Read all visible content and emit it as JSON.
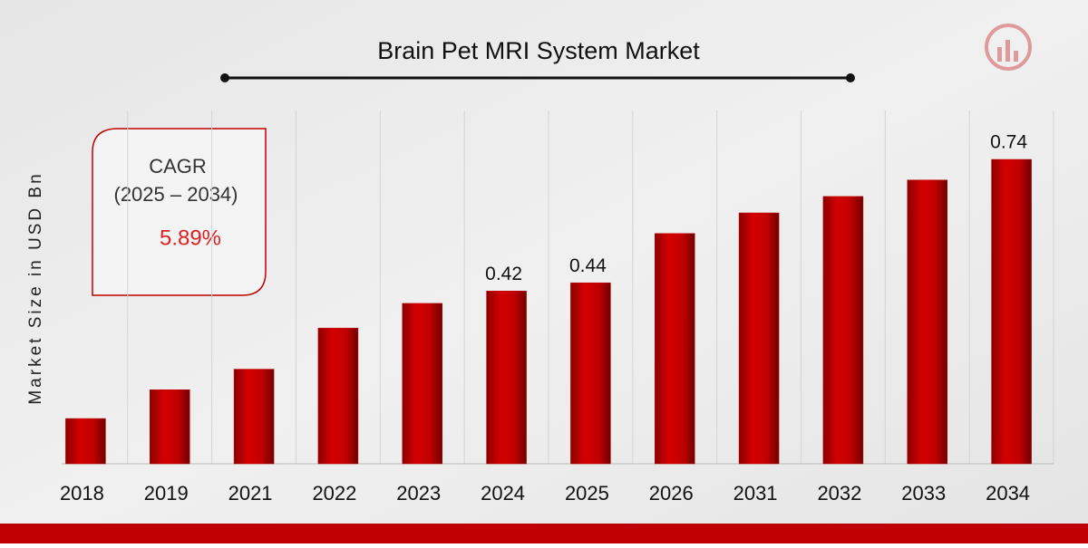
{
  "chart_data": {
    "type": "bar",
    "title": "Brain Pet MRI System Market",
    "y_label": "Market Size in USD Bn",
    "categories": [
      "2018",
      "2019",
      "2021",
      "2022",
      "2023",
      "2024",
      "2025",
      "2026",
      "2031",
      "2032",
      "2033",
      "2034"
    ],
    "values": [
      0.11,
      0.18,
      0.23,
      0.33,
      0.39,
      0.42,
      0.44,
      0.56,
      0.61,
      0.65,
      0.69,
      0.74
    ],
    "value_labels": [
      null,
      null,
      null,
      null,
      null,
      "0.42",
      "0.44",
      null,
      null,
      null,
      null,
      "0.74"
    ],
    "color": "#c00000",
    "grid": true,
    "annotation": {
      "title": "CAGR",
      "period": "(2025 – 2034)",
      "value": "5.89%"
    }
  }
}
